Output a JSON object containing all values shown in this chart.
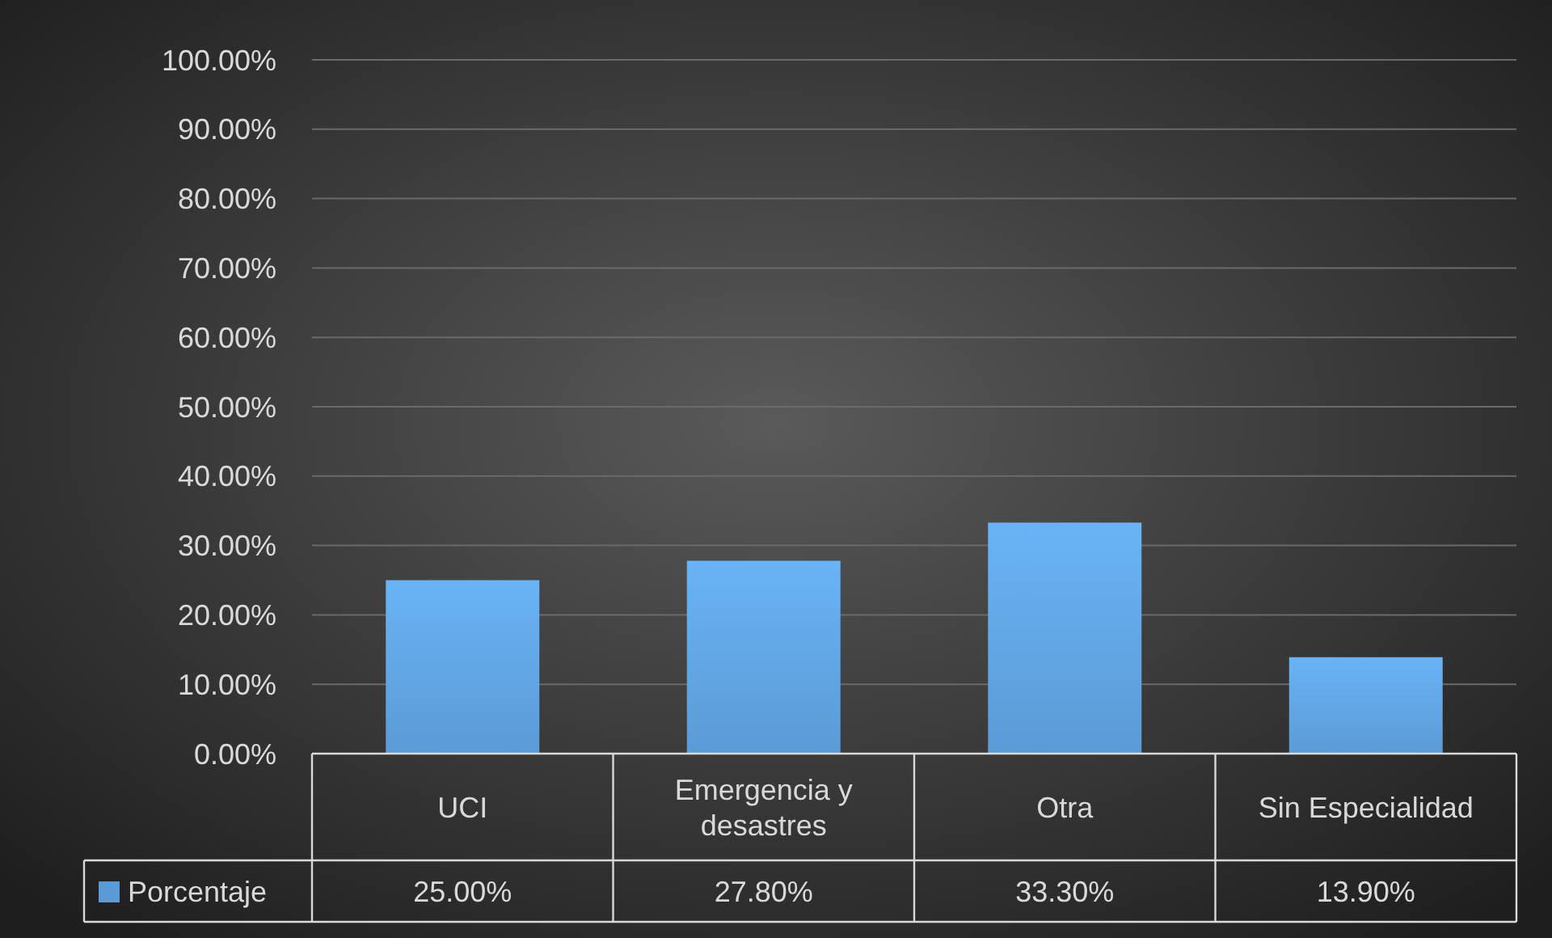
{
  "chart_data": {
    "type": "bar",
    "categories": [
      "UCI",
      "Emergencia y desastres",
      "Otra",
      "Sin Especialidad"
    ],
    "series": [
      {
        "name": "Porcentaje",
        "color": "#5b9bd5",
        "values": [
          25,
          27.8,
          33.3,
          13.9
        ],
        "value_labels": [
          "25.00%",
          "27.80%",
          "33.30%",
          "13.90%"
        ]
      }
    ],
    "ylim": [
      0,
      100
    ],
    "yticks": [
      {
        "value": 0,
        "label": "0.00%"
      },
      {
        "value": 10,
        "label": "10.00%"
      },
      {
        "value": 20,
        "label": "20.00%"
      },
      {
        "value": 30,
        "label": "30.00%"
      },
      {
        "value": 40,
        "label": "40.00%"
      },
      {
        "value": 50,
        "label": "50.00%"
      },
      {
        "value": 60,
        "label": "60.00%"
      },
      {
        "value": 70,
        "label": "70.00%"
      },
      {
        "value": 80,
        "label": "80.00%"
      },
      {
        "value": 90,
        "label": "90.00%"
      },
      {
        "value": 100,
        "label": "100.00%"
      }
    ],
    "grid": "y",
    "legend": "bottom left"
  }
}
